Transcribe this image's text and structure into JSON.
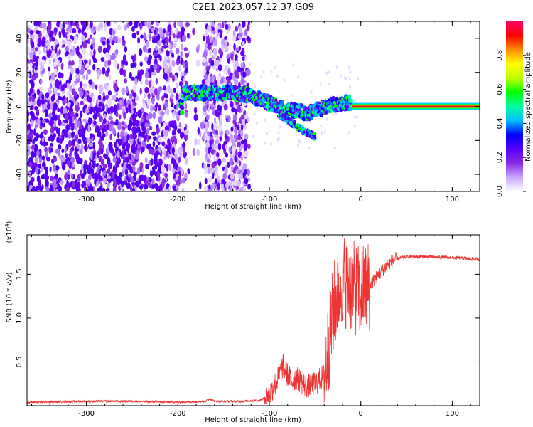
{
  "title": "C2E1.2023.057.12.37.G09",
  "chart_data": [
    {
      "type": "heatmap",
      "xlabel": "Height of straight line (km)",
      "ylabel": "Frequency (Hz)",
      "xlim": [
        -365,
        130
      ],
      "ylim": [
        -50,
        50
      ],
      "xticks": [
        -300,
        -200,
        -100,
        0,
        100
      ],
      "yticks": [
        -40,
        -20,
        0,
        20,
        40
      ],
      "colorbar": {
        "label": "Normalized spectral amplitude",
        "range": [
          0,
          1
        ],
        "ticks": [
          "0.0",
          "0.2",
          "0.4",
          "0.6",
          "0.8"
        ],
        "colors": [
          "#ffffff",
          "#c9a6ff",
          "#8a2be2",
          "#5500ff",
          "#0000ff",
          "#00bfff",
          "#00ffa0",
          "#00ff00",
          "#c0ff00",
          "#ffff00",
          "#ff8c00",
          "#ff0000",
          "#ff0066"
        ]
      },
      "features": {
        "noise_region_x": [
          -365,
          -122
        ],
        "signal_track": [
          {
            "x": -195,
            "y": 8
          },
          {
            "x": -170,
            "y": 8
          },
          {
            "x": -150,
            "y": 8
          },
          {
            "x": -125,
            "y": 7
          },
          {
            "x": -110,
            "y": 4
          },
          {
            "x": -95,
            "y": 1
          },
          {
            "x": -80,
            "y": -2
          },
          {
            "x": -60,
            "y": -4
          },
          {
            "x": -45,
            "y": -2
          },
          {
            "x": -30,
            "y": 1
          },
          {
            "x": -15,
            "y": 2
          },
          {
            "x": 0,
            "y": 1
          },
          {
            "x": 130,
            "y": 0
          }
        ],
        "lower_branch": [
          {
            "x": -90,
            "y": -4
          },
          {
            "x": -75,
            "y": -10
          },
          {
            "x": -60,
            "y": -15
          },
          {
            "x": -50,
            "y": -18
          }
        ],
        "steady_line": {
          "x_start": -10,
          "x_end": 130,
          "y": 0
        }
      }
    },
    {
      "type": "line",
      "xlabel": "Height of straight line (km)",
      "ylabel": "SNR (10 * v/v)",
      "y_multiplier": "(x10",
      "y_multiplier_exp": "4",
      "y_multiplier_close": ")",
      "xlim": [
        -365,
        130
      ],
      "ylim": [
        0,
        1.95
      ],
      "xticks": [
        -300,
        -200,
        -100,
        0,
        100
      ],
      "yticks": [
        "0.5",
        "1.0",
        "1.5"
      ],
      "color": "#ee3333",
      "series": [
        {
          "x": [
            -365,
            -300,
            -250,
            -200,
            -170,
            -165,
            -160,
            -130,
            -110,
            -100,
            -92,
            -85,
            -80,
            -75,
            -70,
            -60,
            -50,
            -40,
            -35,
            -30,
            -25,
            -20,
            -15,
            -10,
            0,
            10,
            20,
            30,
            40,
            50,
            70,
            100,
            130
          ],
          "y": [
            0.04,
            0.05,
            0.05,
            0.04,
            0.05,
            0.08,
            0.05,
            0.05,
            0.06,
            0.12,
            0.28,
            0.45,
            0.35,
            0.28,
            0.32,
            0.22,
            0.25,
            0.35,
            0.7,
            1.1,
            1.3,
            1.45,
            1.4,
            1.35,
            1.3,
            1.38,
            1.5,
            1.62,
            1.68,
            1.7,
            1.7,
            1.69,
            1.67
          ]
        }
      ]
    }
  ]
}
